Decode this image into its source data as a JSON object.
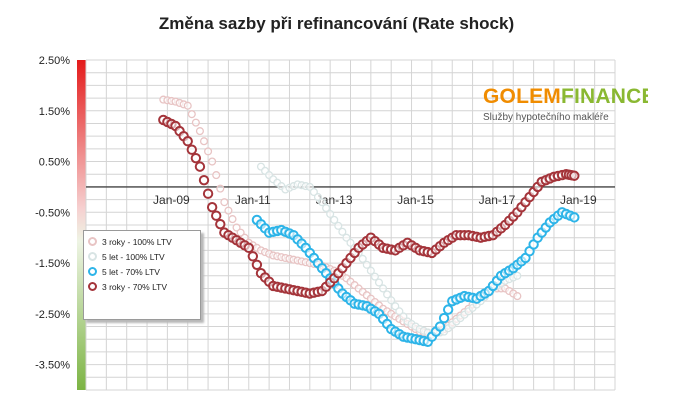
{
  "chart_data": {
    "type": "line",
    "title": "Změna sazby při refinancování (Rate shock)",
    "xlabel": "",
    "ylabel": "",
    "ylim": [
      -0.04,
      0.025
    ],
    "xlim": [
      2007.0,
      2020.0
    ],
    "yticks": [
      "2.50%",
      "1.50%",
      "0.50%",
      "-0.50%",
      "-1.50%",
      "-2.50%",
      "-3.50%"
    ],
    "ytick_values": [
      0.025,
      0.015,
      0.005,
      -0.005,
      -0.015,
      -0.025,
      -0.035
    ],
    "xticks": [
      "Jan-09",
      "Jan-11",
      "Jan-13",
      "Jan-15",
      "Jan-17",
      "Jan-19"
    ],
    "xtick_values": [
      2009.0,
      2011.0,
      2013.0,
      2015.0,
      2017.0,
      2019.0
    ],
    "grid": true,
    "legend_position": "left",
    "series": [
      {
        "name": "3 roky - 100% LTV",
        "color": "#e8c4c4",
        "marker": "circle-open",
        "x": [
          2008.9,
          2009.2,
          2009.5,
          2009.8,
          2010.1,
          2010.4,
          2010.7,
          2011.0,
          2011.3,
          2011.6,
          2011.9,
          2012.2,
          2012.5,
          2012.8,
          2013.1,
          2013.4,
          2013.7,
          2014.0,
          2014.3,
          2014.6,
          2014.9,
          2015.2,
          2015.5,
          2015.8,
          2016.1,
          2016.4,
          2016.7,
          2017.0,
          2017.3,
          2017.6
        ],
        "values": [
          0.0172,
          0.0168,
          0.016,
          0.011,
          0.005,
          -0.003,
          -0.008,
          -0.011,
          -0.0125,
          -0.0135,
          -0.014,
          -0.0145,
          -0.015,
          -0.0155,
          -0.0165,
          -0.018,
          -0.02,
          -0.022,
          -0.024,
          -0.0255,
          -0.027,
          -0.0285,
          -0.029,
          -0.028,
          -0.026,
          -0.024,
          -0.0215,
          -0.02,
          -0.02,
          -0.0215
        ]
      },
      {
        "name": "5 let - 100% LTV",
        "color": "#d8e4e4",
        "marker": "circle-open",
        "x": [
          2011.3,
          2011.6,
          2011.9,
          2012.2,
          2012.5,
          2012.8,
          2013.1,
          2013.4,
          2013.7,
          2014.0,
          2014.3,
          2014.6,
          2014.9,
          2015.2,
          2015.5,
          2015.8,
          2016.1,
          2016.4,
          2016.7,
          2017.0,
          2017.3,
          2017.6
        ],
        "values": [
          0.004,
          0.0015,
          -0.0005,
          0.0005,
          0.0,
          -0.003,
          -0.0065,
          -0.01,
          -0.013,
          -0.0165,
          -0.02,
          -0.0235,
          -0.0265,
          -0.028,
          -0.029,
          -0.0285,
          -0.0265,
          -0.0245,
          -0.0225,
          -0.02,
          -0.0185,
          -0.0175
        ]
      },
      {
        "name": "5 let - 70% LTV",
        "color": "#2db4e8",
        "marker": "circle-open",
        "x": [
          2011.2,
          2011.5,
          2011.8,
          2012.1,
          2012.4,
          2012.7,
          2013.0,
          2013.3,
          2013.6,
          2013.9,
          2014.2,
          2014.5,
          2014.8,
          2015.1,
          2015.4,
          2015.7,
          2016.0,
          2016.3,
          2016.6,
          2016.9,
          2017.2,
          2017.5,
          2017.8,
          2018.1,
          2018.4,
          2018.7,
          2019.0
        ],
        "values": [
          -0.0065,
          -0.009,
          -0.0085,
          -0.0095,
          -0.012,
          -0.015,
          -0.018,
          -0.021,
          -0.023,
          -0.0235,
          -0.025,
          -0.028,
          -0.0295,
          -0.03,
          -0.0305,
          -0.0275,
          -0.0225,
          -0.0215,
          -0.022,
          -0.0205,
          -0.0175,
          -0.016,
          -0.014,
          -0.01,
          -0.007,
          -0.005,
          -0.006
        ]
      },
      {
        "name": "3 roky - 70% LTV",
        "color": "#a4343a",
        "marker": "circle-open",
        "x": [
          2008.9,
          2009.2,
          2009.5,
          2009.8,
          2010.1,
          2010.4,
          2010.7,
          2011.0,
          2011.3,
          2011.6,
          2011.9,
          2012.2,
          2012.5,
          2012.8,
          2013.1,
          2013.4,
          2013.7,
          2014.0,
          2014.3,
          2014.6,
          2014.9,
          2015.2,
          2015.5,
          2015.8,
          2016.1,
          2016.4,
          2016.7,
          2017.0,
          2017.3,
          2017.6,
          2017.9,
          2018.2,
          2018.5,
          2018.8,
          2019.0
        ],
        "values": [
          0.0132,
          0.012,
          0.009,
          0.004,
          -0.004,
          -0.009,
          -0.0105,
          -0.012,
          -0.017,
          -0.0195,
          -0.02,
          -0.0205,
          -0.021,
          -0.0205,
          -0.018,
          -0.015,
          -0.012,
          -0.01,
          -0.012,
          -0.0125,
          -0.011,
          -0.0125,
          -0.013,
          -0.011,
          -0.0095,
          -0.0095,
          -0.01,
          -0.0095,
          -0.0075,
          -0.005,
          -0.002,
          0.001,
          0.002,
          0.0025,
          0.0022
        ]
      }
    ]
  },
  "logo": {
    "word_part1": "GOLEM",
    "word_part2": "FINANCE",
    "tagline": "Služby hypotečního makléře"
  }
}
